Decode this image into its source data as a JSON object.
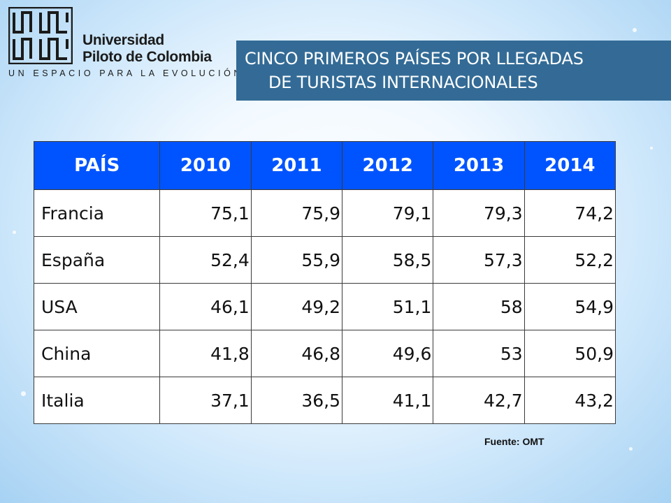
{
  "logo": {
    "line1": "Universidad",
    "line2": "Piloto de Colombia",
    "tagline": "UN ESPACIO PARA LA EVOLUCIÓN"
  },
  "title": {
    "line1": "CINCO PRIMEROS PAÍSES POR LLEGADAS",
    "line2": "DE TURISTAS INTERNACIONALES"
  },
  "table": {
    "headers": [
      "PAÍS",
      "2010",
      "2011",
      "2012",
      "2013",
      "2014"
    ],
    "rows": [
      [
        "Francia",
        "75,1",
        "75,9",
        "79,1",
        "79,3",
        "74,2"
      ],
      [
        "España",
        "52,4",
        "55,9",
        "58,5",
        "57,3",
        "52,2"
      ],
      [
        "USA",
        "46,1",
        "49,2",
        "51,1",
        "58",
        "54,9"
      ],
      [
        "China",
        "41,8",
        "46,8",
        "49,6",
        "53",
        "50,9"
      ],
      [
        "Italia",
        "37,1",
        "36,5",
        "41,1",
        "42,7",
        "43,2"
      ]
    ]
  },
  "source": "Fuente: OMT",
  "colors": {
    "header_bg": "#0054ff",
    "title_bg": "#336b96"
  }
}
